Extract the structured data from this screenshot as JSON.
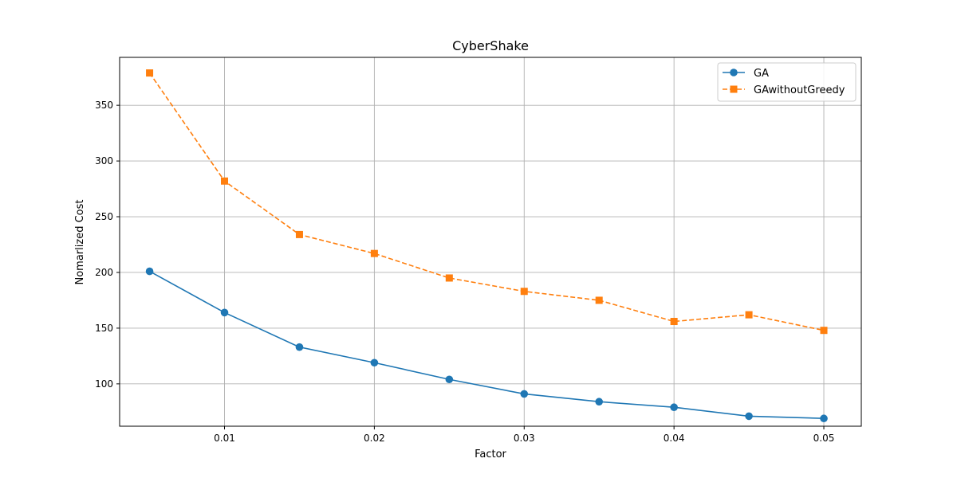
{
  "chart_data": {
    "type": "line",
    "title": "CyberShake",
    "xlabel": "Factor",
    "ylabel": "Nomarlized Cost",
    "x": [
      0.005,
      0.01,
      0.015,
      0.02,
      0.025,
      0.03,
      0.035,
      0.04,
      0.045,
      0.05
    ],
    "xlim": [
      0.003,
      0.0525
    ],
    "ylim": [
      62,
      393
    ],
    "xticks": [
      0.01,
      0.02,
      0.03,
      0.04,
      0.05
    ],
    "xtick_labels": [
      "0.01",
      "0.02",
      "0.03",
      "0.04",
      "0.05"
    ],
    "yticks": [
      100,
      150,
      200,
      250,
      300,
      350
    ],
    "ytick_labels": [
      "100",
      "150",
      "200",
      "250",
      "300",
      "350"
    ],
    "grid": true,
    "legend_position": "top-right",
    "series": [
      {
        "name": "GA",
        "color": "#1f77b4",
        "marker": "circle",
        "line_style": "solid",
        "values": [
          201,
          164,
          133,
          119,
          104,
          91,
          84,
          79,
          71,
          69
        ]
      },
      {
        "name": "GAwithoutGreedy",
        "color": "#ff7f0e",
        "marker": "square",
        "line_style": "dashed",
        "values": [
          379,
          282,
          234,
          217,
          195,
          183,
          175,
          156,
          162,
          148
        ]
      }
    ]
  }
}
